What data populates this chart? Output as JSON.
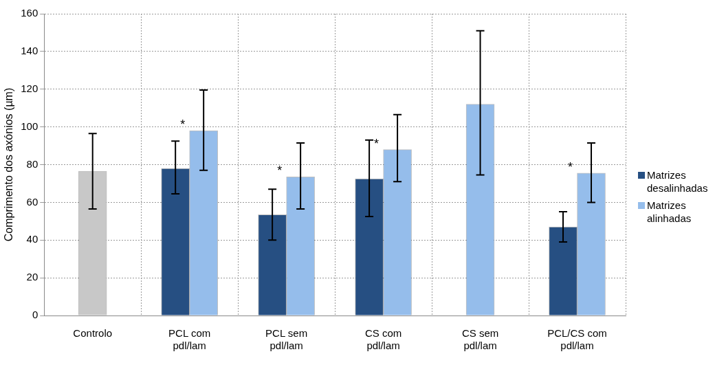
{
  "chart_data": {
    "type": "bar",
    "ylabel": "Comprimento dos axónios (µm)",
    "categories": [
      "Controlo",
      "PCL com pdl/lam",
      "PCL sem pdl/lam",
      "CS com pdl/lam",
      "CS sem pdl/lam",
      "PCL/CS com pdl/lam"
    ],
    "series": [
      {
        "name": "Matrizes desalinhadas",
        "color": "#264f82",
        "values": [
          null,
          78,
          53.5,
          72.5,
          null,
          47
        ],
        "errors": [
          null,
          [
            64.5,
            92.5
          ],
          [
            40,
            67
          ],
          [
            52.5,
            93
          ],
          null,
          [
            39,
            55
          ]
        ]
      },
      {
        "name": "Matrizes alinhadas",
        "color": "#95bdeb",
        "values": [
          null,
          98,
          73.5,
          88,
          112,
          75.5
        ],
        "errors": [
          null,
          [
            77,
            119.5
          ],
          [
            56.5,
            91.5
          ],
          [
            71,
            106.5
          ],
          [
            74.5,
            151
          ],
          [
            60,
            91.5
          ]
        ]
      },
      {
        "color": "#c8c8c8",
        "values": [
          76.5,
          null,
          null,
          null,
          null,
          null
        ],
        "errors": [
          [
            56.5,
            96.5
          ],
          null,
          null,
          null,
          null,
          null
        ]
      }
    ],
    "ylim": [
      0,
      160
    ],
    "yticks": [
      0,
      20,
      40,
      60,
      80,
      100,
      120,
      140,
      160
    ],
    "grid": true,
    "legend": "right",
    "annotations": [
      {
        "text": "*",
        "x": "PCL com pdl/lam",
        "y": 98
      },
      {
        "text": "*",
        "x": "PCL sem pdl/lam",
        "y": 73.5
      },
      {
        "text": "*",
        "x": "CS com pdl/lam",
        "y": 88
      },
      {
        "text": "*",
        "x": "PCL/CS com pdl/lam",
        "y": 75.5
      }
    ]
  }
}
